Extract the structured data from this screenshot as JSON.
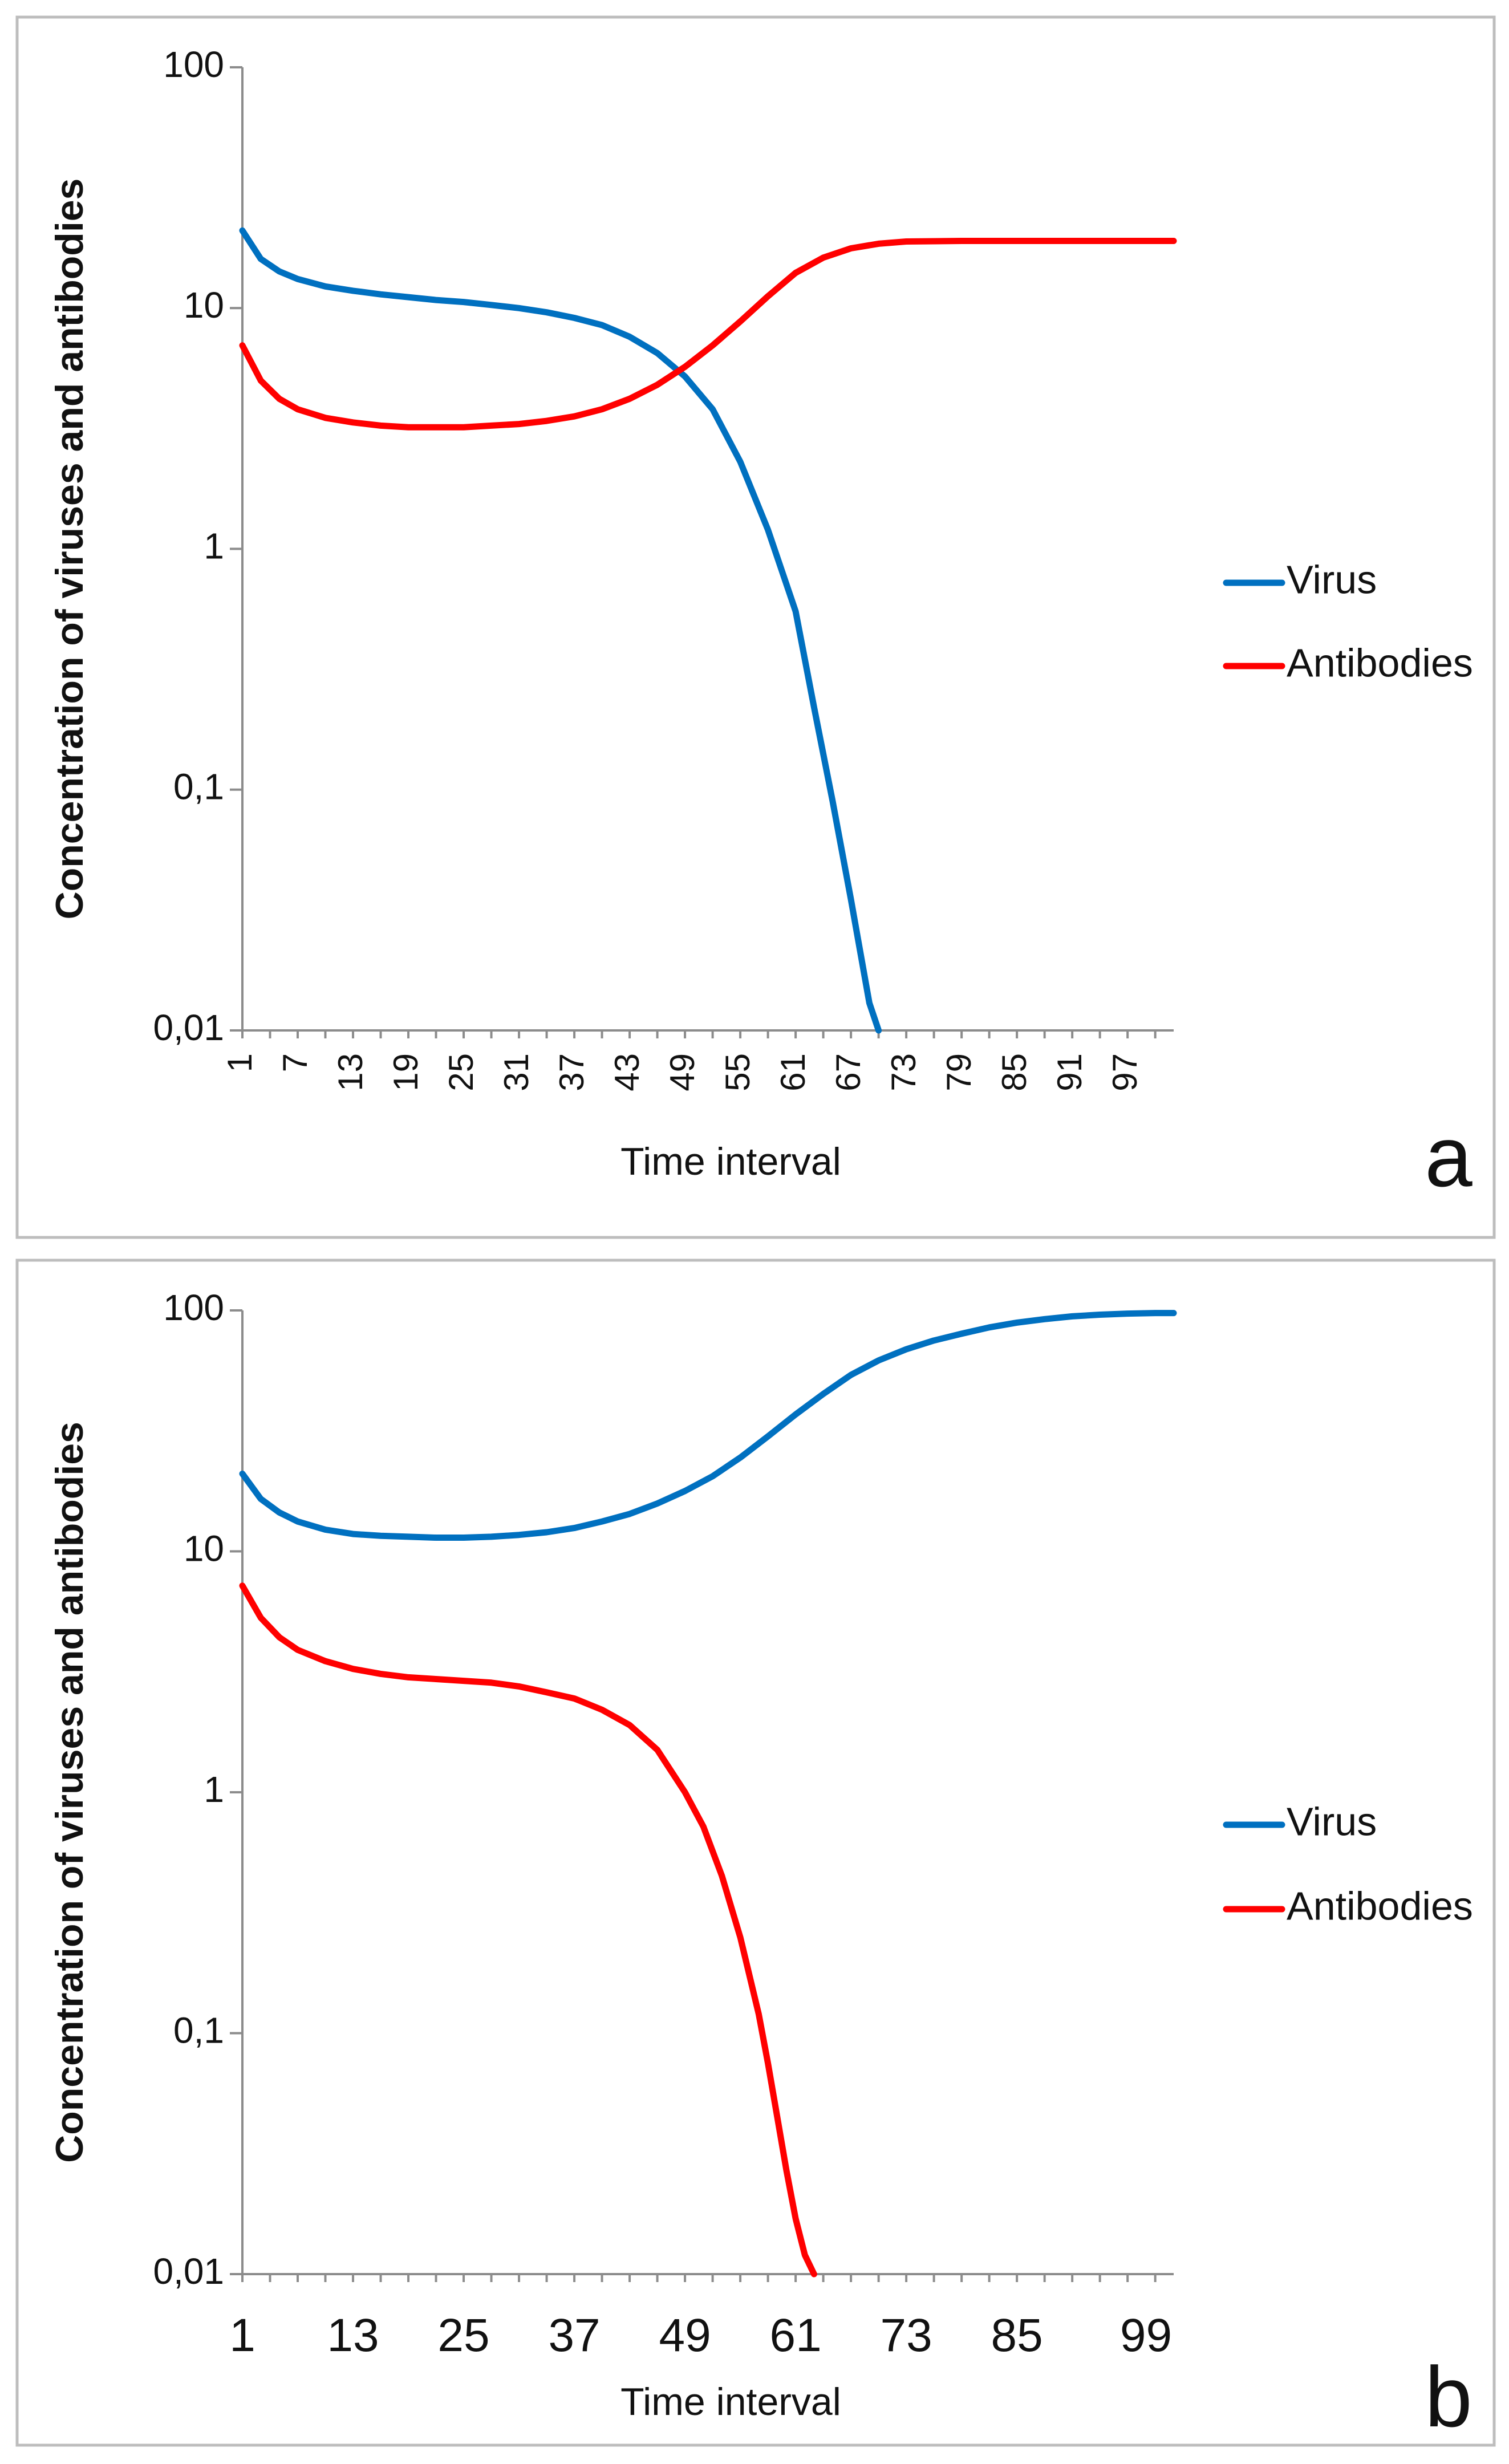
{
  "chart_data": [
    {
      "type": "line",
      "panel_label": "a",
      "xlabel": "Time interval",
      "ylabel": "Concentration of  viruses and antibodies",
      "yscale": "log",
      "ylim": [
        0.01,
        100
      ],
      "xlim": [
        1,
        102
      ],
      "y_ticks": [
        100,
        10,
        1,
        0.1,
        0.01
      ],
      "y_tick_labels": [
        "100",
        "10",
        "1",
        "0,1",
        "0,01"
      ],
      "x_ticks": [
        1,
        7,
        13,
        19,
        25,
        31,
        37,
        43,
        49,
        55,
        61,
        67,
        73,
        79,
        85,
        91,
        97
      ],
      "x_tick_labels": [
        "1",
        "7",
        "13",
        "19",
        "25",
        "31",
        "37",
        "43",
        "49",
        "55",
        "61",
        "67",
        "73",
        "79",
        "85",
        "91",
        "97"
      ],
      "x_tick_rotation": -90,
      "legend": "right",
      "series": [
        {
          "name": "Virus",
          "color": "#0070c0",
          "x": [
            1,
            3,
            5,
            7,
            10,
            13,
            16,
            19,
            22,
            25,
            28,
            31,
            34,
            37,
            40,
            43,
            46,
            49,
            52,
            55,
            58,
            61,
            63,
            65,
            67,
            69,
            70
          ],
          "y": [
            21,
            16,
            14.2,
            13.2,
            12.3,
            11.8,
            11.4,
            11.1,
            10.8,
            10.6,
            10.3,
            10,
            9.6,
            9.1,
            8.5,
            7.6,
            6.5,
            5.2,
            3.8,
            2.3,
            1.2,
            0.55,
            0.22,
            0.09,
            0.035,
            0.013,
            0.01
          ]
        },
        {
          "name": "Antibodies",
          "color": "#ff0000",
          "x": [
            1,
            3,
            5,
            7,
            10,
            13,
            16,
            19,
            22,
            25,
            28,
            31,
            34,
            37,
            40,
            43,
            46,
            49,
            52,
            55,
            58,
            61,
            64,
            67,
            70,
            73,
            79,
            85,
            91,
            97,
            102
          ],
          "y": [
            7,
            5,
            4.2,
            3.8,
            3.5,
            3.35,
            3.25,
            3.2,
            3.2,
            3.2,
            3.25,
            3.3,
            3.4,
            3.55,
            3.8,
            4.2,
            4.8,
            5.7,
            7,
            8.8,
            11.2,
            14,
            16.2,
            17.7,
            18.5,
            18.9,
            19,
            19,
            19,
            19,
            19
          ]
        }
      ]
    },
    {
      "type": "line",
      "panel_label": "b",
      "xlabel": "Time interval",
      "ylabel": "Concentration of  viruses and antibodies",
      "yscale": "log",
      "ylim": [
        0.01,
        100
      ],
      "xlim": [
        1,
        102
      ],
      "y_ticks": [
        100,
        10,
        1,
        0.1,
        0.01
      ],
      "y_tick_labels": [
        "100",
        "10",
        "1",
        "0,1",
        "0,01"
      ],
      "x_ticks": [
        1,
        13,
        25,
        37,
        49,
        61,
        73,
        85,
        99
      ],
      "x_tick_labels": [
        "1",
        "13",
        "25",
        "37",
        "49",
        "61",
        "73",
        "85",
        "99"
      ],
      "x_tick_rotation": 0,
      "legend": "right",
      "series": [
        {
          "name": "Virus",
          "color": "#0070c0",
          "x": [
            1,
            3,
            5,
            7,
            10,
            13,
            16,
            19,
            22,
            25,
            28,
            31,
            34,
            37,
            40,
            43,
            46,
            49,
            52,
            55,
            58,
            61,
            64,
            67,
            70,
            73,
            76,
            79,
            82,
            85,
            88,
            91,
            94,
            97,
            100,
            102
          ],
          "y": [
            21,
            16.5,
            14.5,
            13.3,
            12.3,
            11.8,
            11.6,
            11.5,
            11.4,
            11.4,
            11.5,
            11.7,
            12,
            12.5,
            13.3,
            14.3,
            15.8,
            17.8,
            20.5,
            24.5,
            30,
            37,
            45,
            54,
            62,
            69,
            75,
            80,
            85,
            89,
            92,
            94.5,
            96,
            97,
            97.5,
            97.5
          ]
        },
        {
          "name": "Antibodies",
          "color": "#ff0000",
          "x": [
            1,
            3,
            5,
            7,
            10,
            13,
            16,
            19,
            22,
            25,
            28,
            31,
            34,
            37,
            40,
            43,
            46,
            49,
            51,
            53,
            55,
            57,
            58,
            59,
            60,
            61,
            62,
            63
          ],
          "y": [
            7.2,
            5.3,
            4.4,
            3.9,
            3.5,
            3.25,
            3.1,
            3.0,
            2.95,
            2.9,
            2.85,
            2.75,
            2.6,
            2.45,
            2.2,
            1.9,
            1.5,
            1.0,
            0.72,
            0.45,
            0.25,
            0.12,
            0.075,
            0.045,
            0.027,
            0.017,
            0.012,
            0.01
          ]
        }
      ]
    }
  ]
}
